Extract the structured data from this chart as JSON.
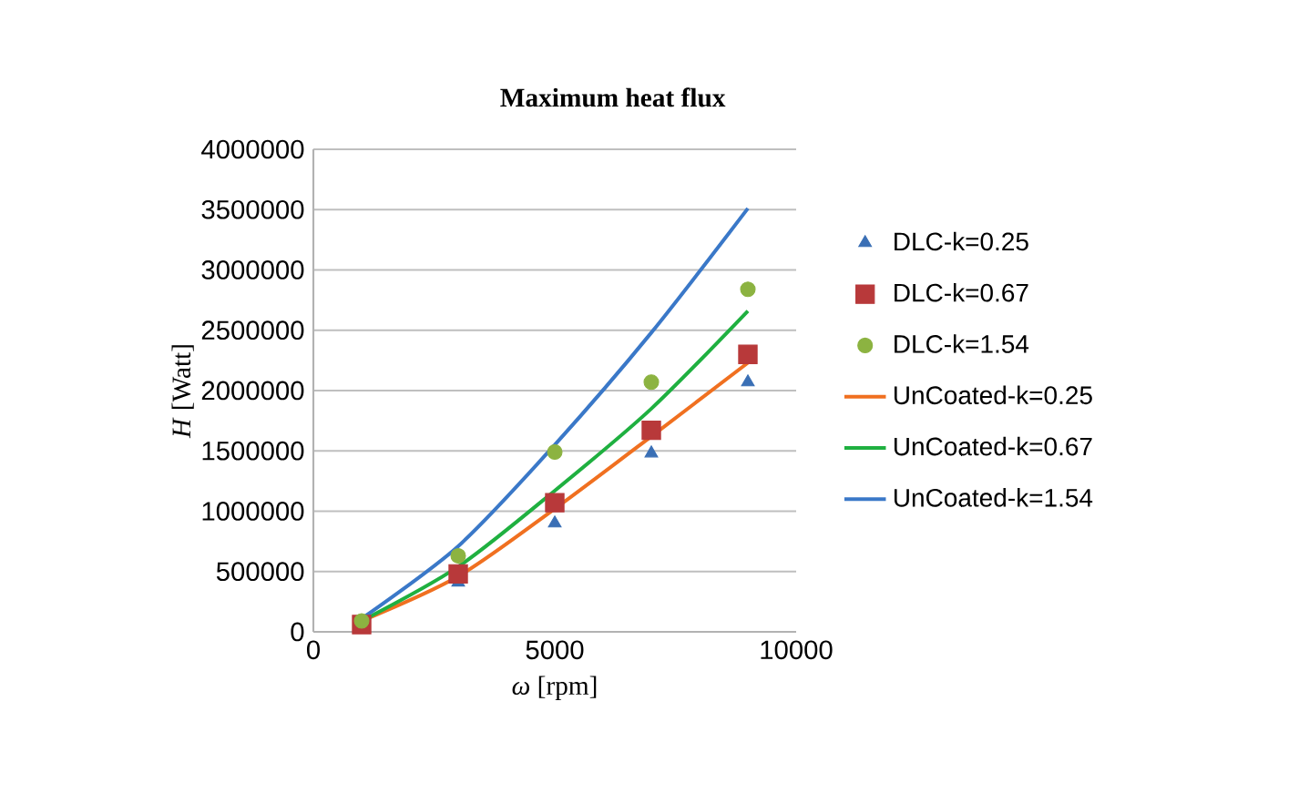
{
  "chart_data": {
    "type": "line",
    "title": "Maximum heat flux",
    "xlabel": "*ω* [rpm]",
    "ylabel": "*H* [Watt]",
    "x": [
      1000,
      3000,
      5000,
      7000,
      9000
    ],
    "series": [
      {
        "name": "DLC-k=0.25",
        "type": "scatter",
        "marker": "triangle",
        "color": "#3a6fb5",
        "values": [
          null,
          410000,
          900000,
          1480000,
          2070000
        ]
      },
      {
        "name": "DLC-k=0.67",
        "type": "scatter",
        "marker": "square",
        "color": "#b8393a",
        "values": [
          60000,
          480000,
          1070000,
          1670000,
          2300000
        ]
      },
      {
        "name": "DLC-k=1.54",
        "type": "scatter",
        "marker": "circle",
        "color": "#8cb341",
        "values": [
          90000,
          630000,
          1490000,
          2070000,
          2840000
        ]
      },
      {
        "name": "UnCoated-k=0.25",
        "color": "#f07020",
        "values": [
          90000,
          460000,
          1020000,
          1620000,
          2230000
        ]
      },
      {
        "name": "UnCoated-k=0.67",
        "color": "#1fb040",
        "values": [
          90000,
          540000,
          1170000,
          1850000,
          2660000
        ]
      },
      {
        "name": "UnCoated-k=1.54",
        "color": "#3a78c8",
        "values": [
          110000,
          710000,
          1550000,
          2480000,
          3510000
        ]
      }
    ],
    "xlim": [
      0,
      10000
    ],
    "xticks": [
      0,
      5000,
      10000
    ],
    "ylim": [
      0,
      4000000
    ],
    "yticks": [
      0,
      500000,
      1000000,
      1500000,
      2000000,
      2500000,
      3000000,
      3500000,
      4000000
    ],
    "grid": "y",
    "legend": "right",
    "marker": "none",
    "line_style": "solid"
  }
}
